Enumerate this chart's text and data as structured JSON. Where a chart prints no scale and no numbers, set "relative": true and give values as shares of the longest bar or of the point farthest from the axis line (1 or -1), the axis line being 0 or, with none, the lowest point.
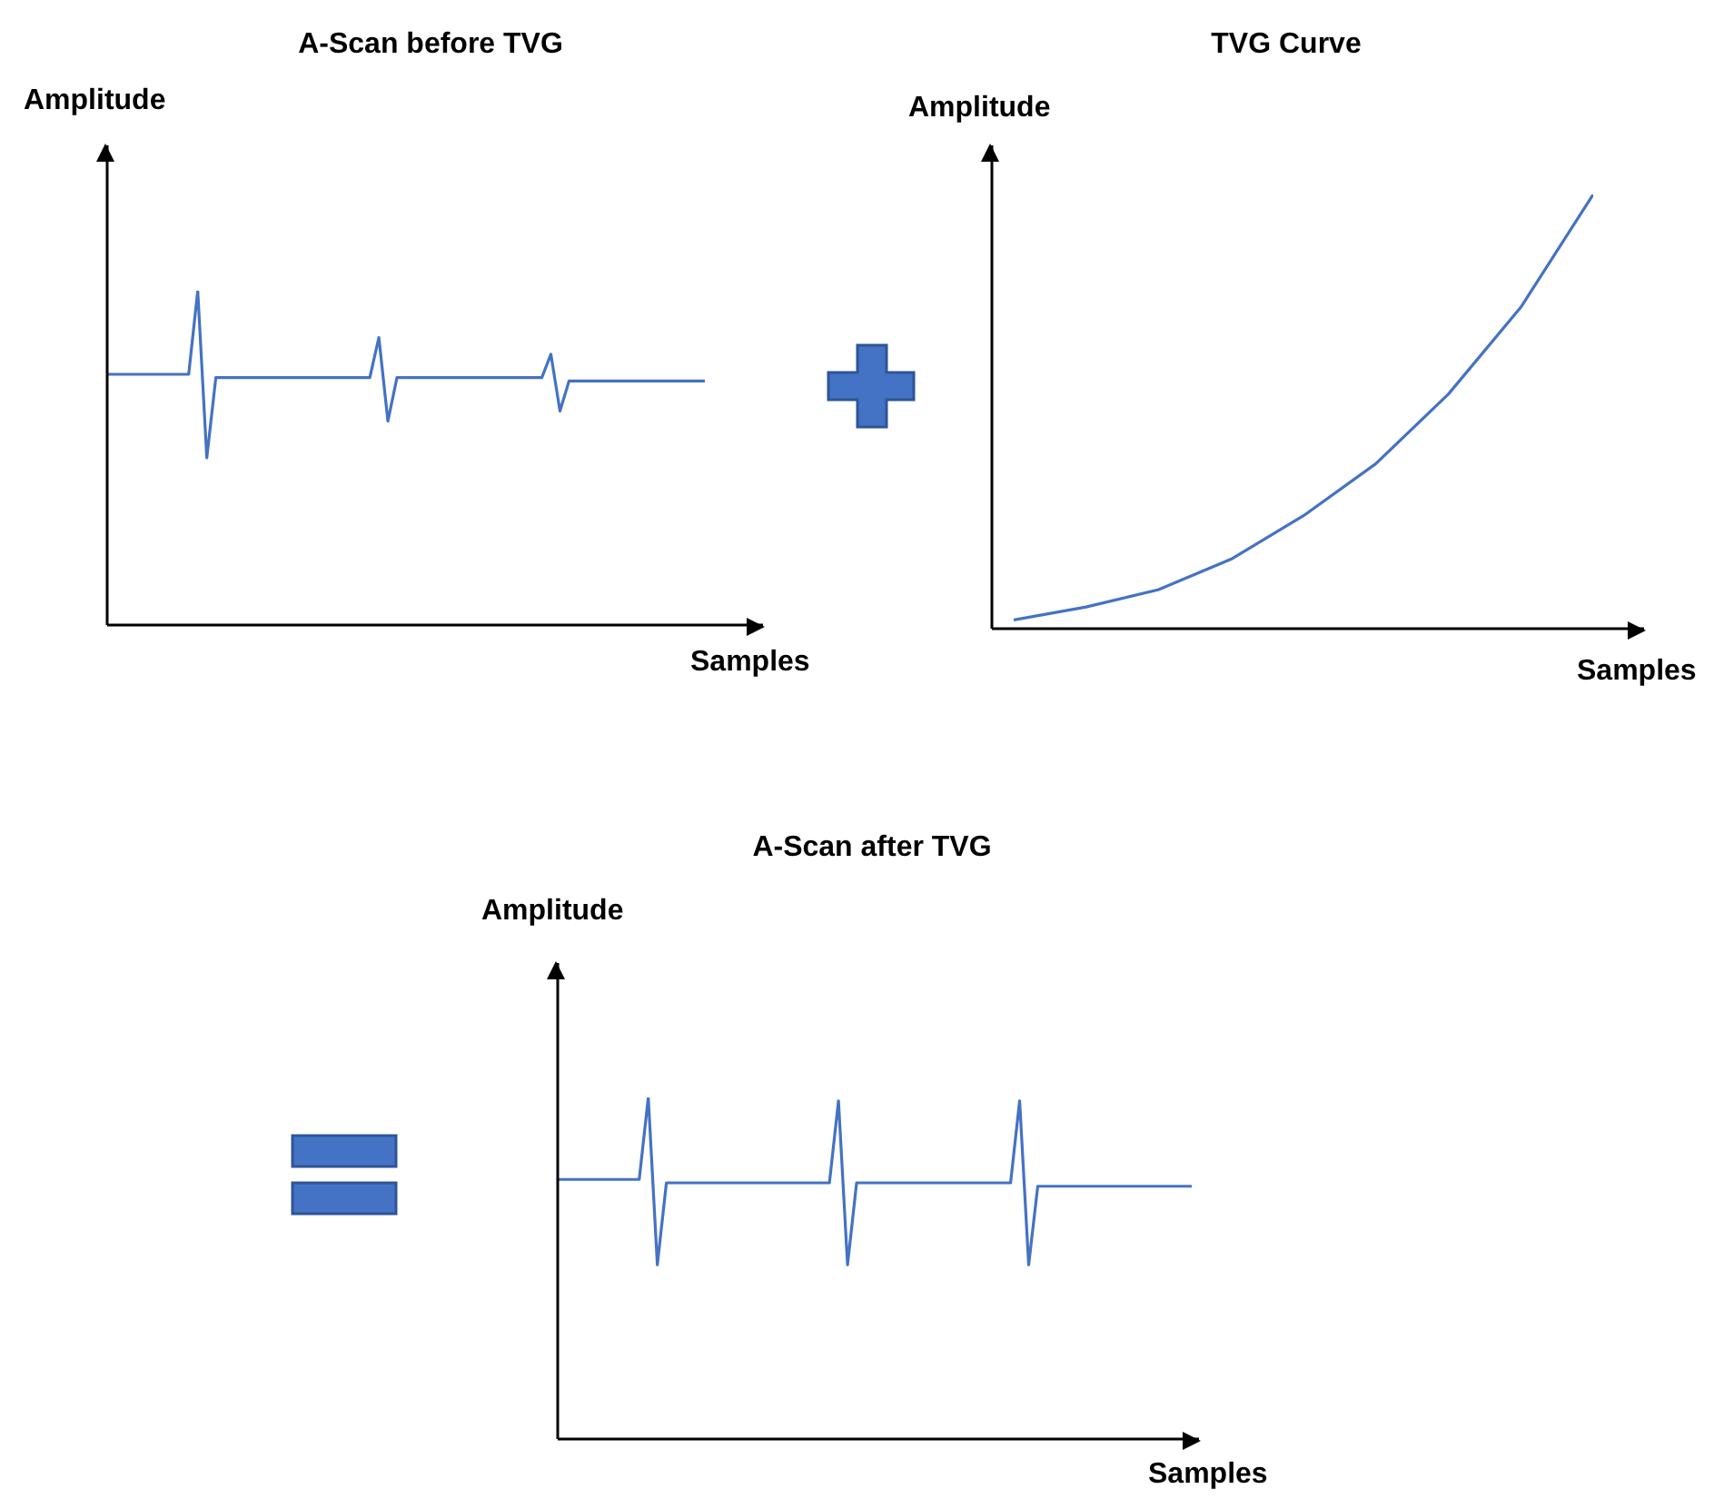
{
  "chart_data": [
    {
      "type": "line",
      "title": "A-Scan before TVG",
      "ylabel": "Amplitude",
      "xlabel": "Samples",
      "relative": true,
      "marker": "none",
      "color": "#4472c4",
      "categories": [
        null,
        null,
        null,
        null,
        null,
        null,
        null,
        null,
        null,
        null,
        null,
        null,
        null,
        null,
        null,
        null,
        null,
        null,
        null,
        null,
        null,
        null,
        null,
        null,
        null,
        null,
        null,
        null,
        null,
        null,
        null,
        null,
        null,
        null,
        null,
        null,
        null,
        null,
        null,
        null,
        null,
        null,
        null,
        null,
        null,
        null,
        null,
        null,
        null,
        null,
        null,
        null,
        null,
        null,
        null,
        null,
        null,
        null,
        null,
        null,
        null,
        null,
        null,
        null,
        null,
        null,
        null
      ],
      "values": [
        0.75,
        0.75,
        0.75,
        0.75,
        0.75,
        0.75,
        0.75,
        0.75,
        0.75,
        0.75,
        1,
        0.5,
        0.74,
        0.74,
        0.74,
        0.74,
        0.74,
        0.74,
        0.74,
        0.74,
        0.74,
        0.74,
        0.74,
        0.74,
        0.74,
        0.74,
        0.74,
        0.74,
        0.74,
        0.74,
        0.86,
        0.61,
        0.74,
        0.74,
        0.74,
        0.74,
        0.74,
        0.74,
        0.74,
        0.74,
        0.74,
        0.74,
        0.74,
        0.74,
        0.74,
        0.74,
        0.74,
        0.74,
        0.74,
        0.81,
        0.64,
        0.73,
        0.73,
        0.73,
        0.73,
        0.73,
        0.73,
        0.73,
        0.73,
        0.73,
        0.73,
        0.73,
        0.73,
        0.73,
        0.73,
        0.73,
        0.73
      ]
    },
    {
      "type": "line",
      "title": "TVG Curve",
      "ylabel": "Amplitude",
      "xlabel": "Samples",
      "relative": true,
      "marker": "none",
      "color": "#4472c4",
      "categories": [
        null,
        null,
        null,
        null,
        null,
        null,
        null,
        null,
        null
      ],
      "values": [
        0.02,
        0.05,
        0.09,
        0.16,
        0.26,
        0.38,
        0.54,
        0.74,
        1
      ]
    },
    {
      "type": "line",
      "title": "A-Scan after TVG",
      "ylabel": "Amplitude",
      "xlabel": "Samples",
      "relative": true,
      "marker": "none",
      "color": "#4472c4",
      "categories": [
        null,
        null,
        null,
        null,
        null,
        null,
        null,
        null,
        null,
        null,
        null,
        null,
        null,
        null,
        null,
        null,
        null,
        null,
        null,
        null,
        null,
        null,
        null,
        null,
        null,
        null,
        null,
        null,
        null,
        null,
        null,
        null,
        null,
        null,
        null,
        null,
        null,
        null,
        null,
        null,
        null,
        null,
        null,
        null,
        null,
        null,
        null,
        null,
        null,
        null,
        null,
        null,
        null,
        null,
        null,
        null,
        null,
        null,
        null,
        null,
        null,
        null,
        null,
        null,
        null,
        null,
        null,
        null,
        null,
        null,
        null
      ],
      "values": [
        0.76,
        0.76,
        0.76,
        0.76,
        0.76,
        0.76,
        0.76,
        0.76,
        0.76,
        0.76,
        1,
        0.51,
        0.75,
        0.75,
        0.75,
        0.75,
        0.75,
        0.75,
        0.75,
        0.75,
        0.75,
        0.75,
        0.75,
        0.75,
        0.75,
        0.75,
        0.75,
        0.75,
        0.75,
        0.75,
        0.75,
        0.99,
        0.51,
        0.75,
        0.75,
        0.75,
        0.75,
        0.75,
        0.75,
        0.75,
        0.75,
        0.75,
        0.75,
        0.75,
        0.75,
        0.75,
        0.75,
        0.75,
        0.75,
        0.75,
        0.75,
        0.99,
        0.51,
        0.74,
        0.74,
        0.74,
        0.74,
        0.74,
        0.74,
        0.74,
        0.74,
        0.74,
        0.74,
        0.74,
        0.74,
        0.74,
        0.74,
        0.74,
        0.74,
        0.74,
        0.74
      ]
    }
  ]
}
